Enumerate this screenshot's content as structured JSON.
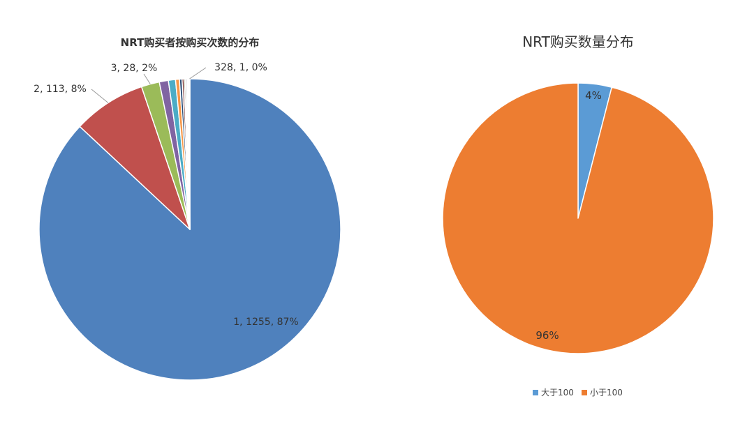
{
  "chart_data": [
    {
      "type": "pie",
      "title": "NRT购买者按购买次数的分布",
      "slices": [
        {
          "label": "1, 1255, 87%",
          "value": 1255,
          "color": "#4F81BD",
          "show_label": true
        },
        {
          "label": "2, 113, 8%",
          "value": 113,
          "color": "#C0504D",
          "show_label": true
        },
        {
          "label": "3, 28, 2%",
          "value": 28,
          "color": "#9BBB59",
          "show_label": true
        },
        {
          "label": "",
          "value": 14,
          "color": "#8064A2",
          "show_label": false
        },
        {
          "label": "",
          "value": 11,
          "color": "#4BACC6",
          "show_label": false
        },
        {
          "label": "",
          "value": 6,
          "color": "#F79646",
          "show_label": false
        },
        {
          "label": "",
          "value": 4,
          "color": "#2C4D75",
          "show_label": false
        },
        {
          "label": "",
          "value": 3,
          "color": "#772C2A",
          "show_label": false
        },
        {
          "label": "",
          "value": 2,
          "color": "#5F7530",
          "show_label": false
        },
        {
          "label": "",
          "value": 2,
          "color": "#4D3B62",
          "show_label": false
        },
        {
          "label": "",
          "value": 1,
          "color": "#276A7C",
          "show_label": false
        },
        {
          "label": "",
          "value": 1,
          "color": "#B65708",
          "show_label": false
        },
        {
          "label": "",
          "value": 1,
          "color": "#729ACA",
          "show_label": false
        },
        {
          "label": "",
          "value": 1,
          "color": "#CD7371",
          "show_label": false
        },
        {
          "label": "328, 1, 0%",
          "value": 1,
          "color": "#AFC97A",
          "show_label": true
        }
      ]
    },
    {
      "type": "pie",
      "title": "NRT购买数量分布",
      "slices": [
        {
          "label": "4%",
          "name": "大于100",
          "value": 4,
          "color": "#5B9BD5"
        },
        {
          "label": "96%",
          "name": "小于100",
          "value": 96,
          "color": "#ED7D31"
        }
      ],
      "legend_position": "bottom"
    }
  ]
}
